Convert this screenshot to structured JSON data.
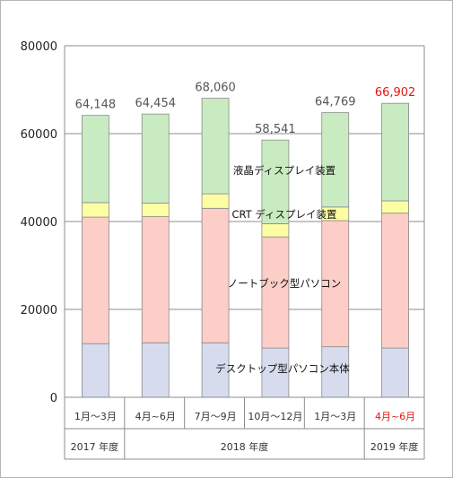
{
  "chart_data": {
    "type": "bar",
    "stacked": true,
    "title": "",
    "xlabel": "",
    "ylabel": "",
    "ylim": [
      0,
      80000
    ],
    "yticks": [
      "0",
      "20000",
      "40000",
      "60000",
      "80000"
    ],
    "grid": true,
    "categories": [
      "1月～3月",
      "4月~6月",
      "7月～9月",
      "10月～12月",
      "1月～3月",
      "4月~6月"
    ],
    "category_colors": [
      "#333333",
      "#333333",
      "#333333",
      "#333333",
      "#333333",
      "#e8140e"
    ],
    "totals": [
      "64,148",
      "64,454",
      "68,060",
      "58,541",
      "64,769",
      "66,902"
    ],
    "total_colors": [
      "#555555",
      "#555555",
      "#555555",
      "#555555",
      "#555555",
      "#e8140e"
    ],
    "series": [
      {
        "name": "デスクトップ型パソコン本体",
        "color": "#d6dcee",
        "values": [
          12200,
          12400,
          12400,
          11200,
          11500,
          11200
        ]
      },
      {
        "name": "ノートブック型パソコン",
        "color": "#fdcdc7",
        "values": [
          28800,
          28700,
          30600,
          25300,
          28700,
          30700
        ]
      },
      {
        "name": "CRTディスプレイ装置",
        "color": "#fdfda4",
        "values": [
          3300,
          3100,
          3300,
          3000,
          3100,
          2800
        ]
      },
      {
        "name": "液晶ディスプレイ装置",
        "color": "#c9ebc1",
        "values": [
          19848,
          20254,
          21760,
          19041,
          21469,
          22202
        ]
      }
    ],
    "series_labels": [
      "デスクトップ型パソコン本体",
      "ノートブック型パソコン",
      "CRT ディスプレイ装置",
      "液晶ディスプレイ装置"
    ],
    "year_groups": [
      {
        "label": "2017 年度",
        "span": 1,
        "color": "#333333"
      },
      {
        "label": "2018 年度",
        "span": 4,
        "color": "#333333"
      },
      {
        "label": "2019 年度",
        "span": 1,
        "color": "#333333"
      }
    ]
  }
}
